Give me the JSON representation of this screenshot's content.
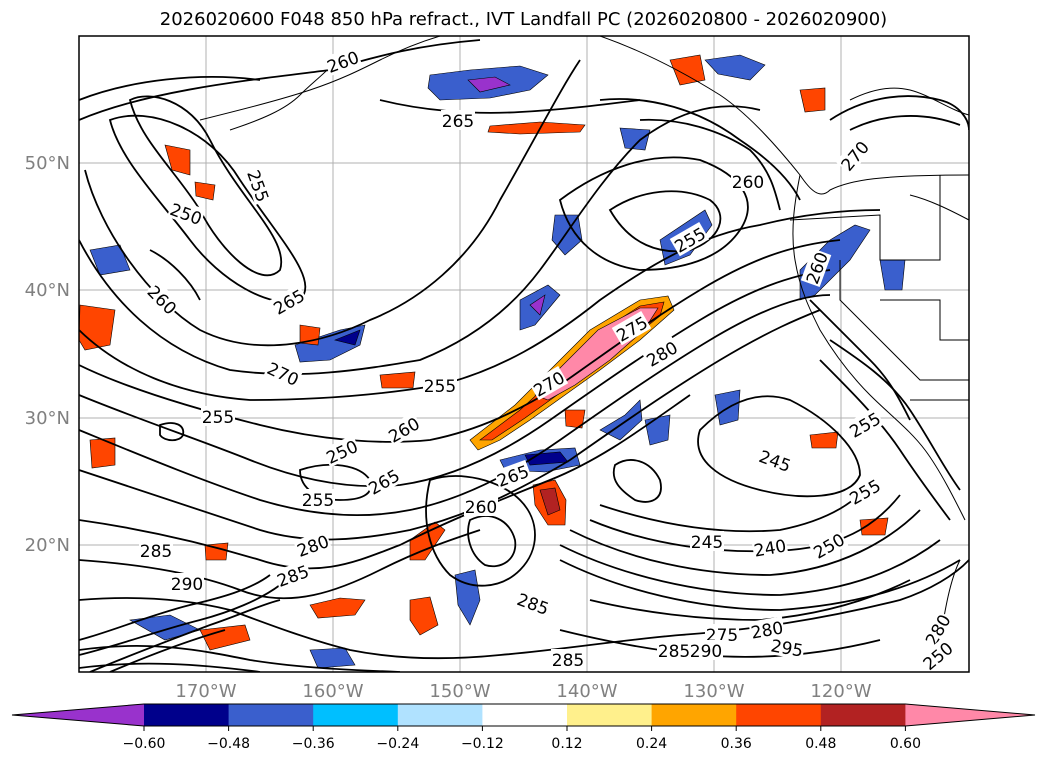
{
  "title": "2026020600 F048 850 hPa refract., IVT Landfall PC (2026020800 - 2026020900)",
  "lat_labels": [
    "50°N",
    "40°N",
    "30°N",
    "20°N"
  ],
  "lon_labels": [
    "170°W",
    "160°W",
    "150°W",
    "140°W",
    "130°W",
    "120°W"
  ],
  "contour_labels": [
    {
      "text": "260",
      "lx": 343,
      "ly": 62,
      "rot": -20
    },
    {
      "text": "265",
      "lx": 458,
      "ly": 121,
      "rot": 0
    },
    {
      "text": "255",
      "lx": 258,
      "ly": 186,
      "rot": 70
    },
    {
      "text": "250",
      "lx": 186,
      "ly": 214,
      "rot": 20
    },
    {
      "text": "260",
      "lx": 162,
      "ly": 300,
      "rot": 45
    },
    {
      "text": "265",
      "lx": 289,
      "ly": 302,
      "rot": -30
    },
    {
      "text": "270",
      "lx": 283,
      "ly": 374,
      "rot": 25
    },
    {
      "text": "255",
      "lx": 440,
      "ly": 386,
      "rot": 0
    },
    {
      "text": "255",
      "lx": 218,
      "ly": 417,
      "rot": 0
    },
    {
      "text": "260",
      "lx": 404,
      "ly": 430,
      "rot": -30
    },
    {
      "text": "250",
      "lx": 342,
      "ly": 452,
      "rot": -25
    },
    {
      "text": "265",
      "lx": 384,
      "ly": 482,
      "rot": -30
    },
    {
      "text": "255",
      "lx": 318,
      "ly": 500,
      "rot": 0
    },
    {
      "text": "265",
      "lx": 513,
      "ly": 476,
      "rot": -20
    },
    {
      "text": "260",
      "lx": 481,
      "ly": 507,
      "rot": 0
    },
    {
      "text": "275",
      "lx": 632,
      "ly": 329,
      "rot": -30
    },
    {
      "text": "280",
      "lx": 662,
      "ly": 354,
      "rot": -30
    },
    {
      "text": "270",
      "lx": 549,
      "ly": 384,
      "rot": -30
    },
    {
      "text": "255",
      "lx": 690,
      "ly": 240,
      "rot": -30
    },
    {
      "text": "260",
      "lx": 748,
      "ly": 182,
      "rot": 0
    },
    {
      "text": "270",
      "lx": 855,
      "ly": 156,
      "rot": -50
    },
    {
      "text": "260",
      "lx": 817,
      "ly": 268,
      "rot": -70
    },
    {
      "text": "245",
      "lx": 775,
      "ly": 461,
      "rot": 20
    },
    {
      "text": "255",
      "lx": 865,
      "ly": 425,
      "rot": -30
    },
    {
      "text": "255",
      "lx": 865,
      "ly": 492,
      "rot": -30
    },
    {
      "text": "245",
      "lx": 707,
      "ly": 542,
      "rot": 0
    },
    {
      "text": "240",
      "lx": 770,
      "ly": 548,
      "rot": -10
    },
    {
      "text": "250",
      "lx": 829,
      "ly": 546,
      "rot": -30
    },
    {
      "text": "285",
      "lx": 156,
      "ly": 551,
      "rot": 0
    },
    {
      "text": "280",
      "lx": 313,
      "ly": 546,
      "rot": -20
    },
    {
      "text": "285",
      "lx": 293,
      "ly": 576,
      "rot": -20
    },
    {
      "text": "290",
      "lx": 187,
      "ly": 584,
      "rot": 0
    },
    {
      "text": "285",
      "lx": 533,
      "ly": 604,
      "rot": 20
    },
    {
      "text": "275",
      "lx": 722,
      "ly": 635,
      "rot": 0
    },
    {
      "text": "280",
      "lx": 767,
      "ly": 630,
      "rot": -10
    },
    {
      "text": "285",
      "lx": 674,
      "ly": 651,
      "rot": 0
    },
    {
      "text": "290",
      "lx": 706,
      "ly": 651,
      "rot": 0
    },
    {
      "text": "295",
      "lx": 787,
      "ly": 648,
      "rot": 10
    },
    {
      "text": "285",
      "lx": 568,
      "ly": 660,
      "rot": 0
    },
    {
      "text": "280",
      "lx": 938,
      "ly": 630,
      "rot": -60
    },
    {
      "text": "250",
      "lx": 938,
      "ly": 656,
      "rot": -40
    }
  ],
  "colorbar": {
    "ticks": [
      "−0.60",
      "−0.48",
      "−0.36",
      "−0.24",
      "−0.12",
      "0.12",
      "0.24",
      "0.36",
      "0.48",
      "0.60"
    ],
    "colors": [
      "#9932cc",
      "#00008b",
      "#3a5fcd",
      "#00bfff",
      "#b0e2ff",
      "#ffffff",
      "#fff08c",
      "#ffa500",
      "#ff4500",
      "#b22222",
      "#ff88a8"
    ]
  },
  "colors": {
    "neg_strong": "#3a5fcd",
    "neg_mid": "#00bfff",
    "neg_weak": "#b0e2ff",
    "pos_weak": "#fff08c",
    "pos_mid": "#ffa500",
    "pos_strong": "#ff4500",
    "pos_max": "#ff88a8",
    "grid": "#b0b0b0"
  }
}
